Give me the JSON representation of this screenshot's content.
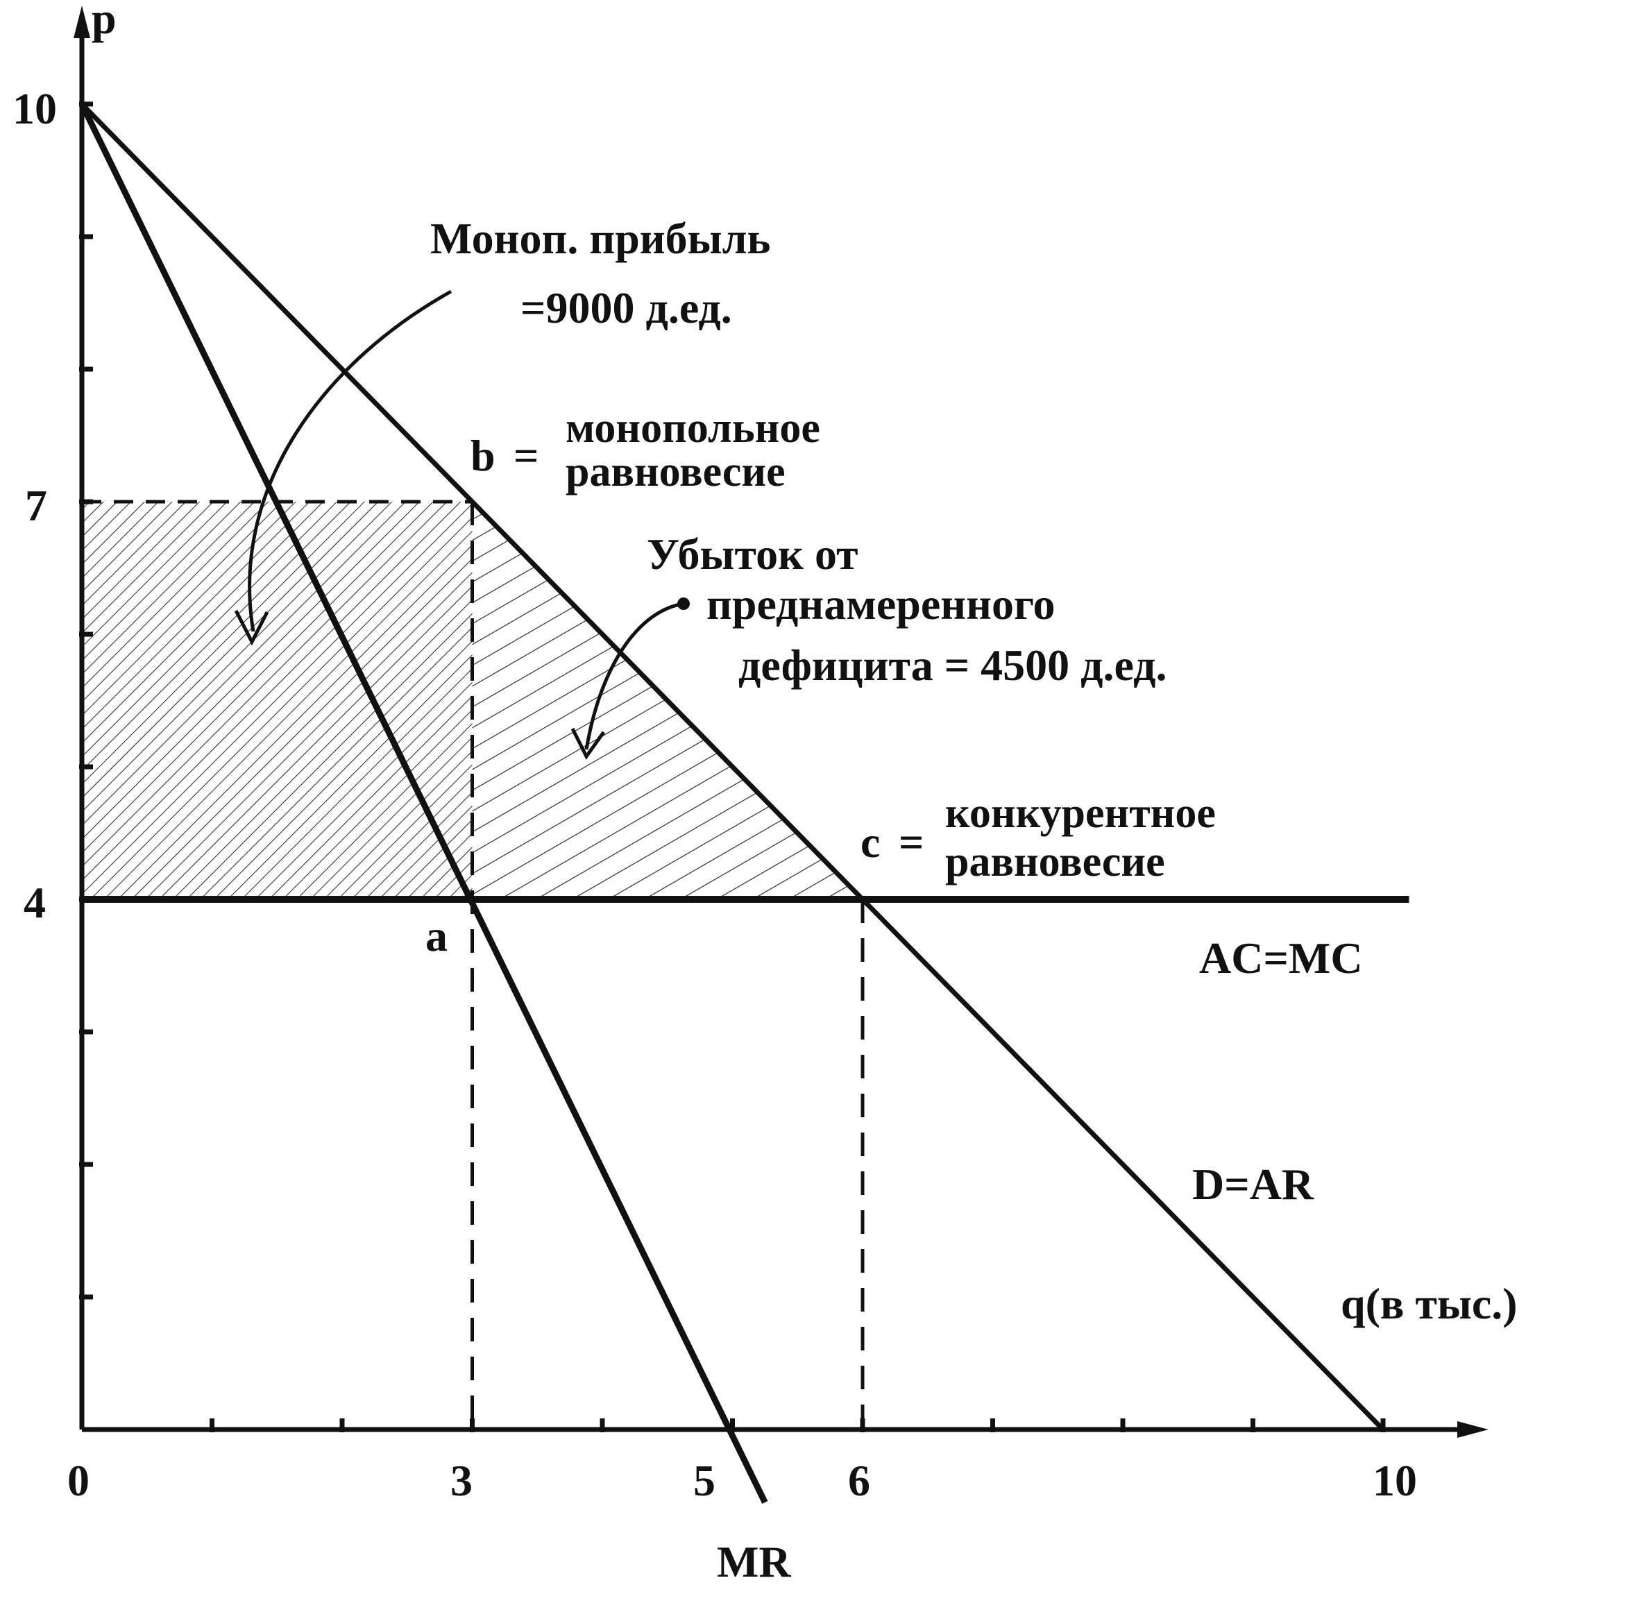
{
  "chart_data": {
    "type": "line",
    "title": "",
    "xlabel": "q(в тыс.)",
    "ylabel": "p",
    "xlim": [
      0,
      10
    ],
    "ylim": [
      0,
      10
    ],
    "x_tick_labels": [
      "0",
      "3",
      "5",
      "6",
      "10"
    ],
    "y_tick_labels": [
      "10",
      "7",
      "4"
    ],
    "series": [
      {
        "name": "D=AR",
        "x": [
          0,
          10
        ],
        "y": [
          10,
          0
        ]
      },
      {
        "name": "MR",
        "x": [
          0,
          5
        ],
        "y": [
          10,
          0
        ]
      },
      {
        "name": "AC=MC",
        "x": [
          0,
          10.2
        ],
        "y": [
          4,
          4
        ]
      }
    ],
    "points": [
      {
        "label": "a",
        "x": 3,
        "y": 4
      },
      {
        "label": "b",
        "x": 3,
        "y": 7
      },
      {
        "label": "c",
        "x": 6,
        "y": 4
      }
    ],
    "shaded_regions": [
      {
        "name": "monopoly_profit",
        "x_range": [
          0,
          3
        ],
        "y_range": [
          4,
          7
        ]
      },
      {
        "name": "deadweight_loss",
        "vertices": [
          [
            3,
            7
          ],
          [
            3,
            4
          ],
          [
            6,
            4
          ]
        ]
      }
    ],
    "annotations": {
      "profit_line1": "Моноп. прибыль",
      "profit_line2": "=9000 д.ед.",
      "b_prefix": "b",
      "b_eq": "=",
      "b_line1": "монопольное",
      "b_line2": "равновесие",
      "loss_line1": "Убыток от",
      "loss_line2": "преднамеренного",
      "loss_line3": "дефицита = 4500 д.ед.",
      "c_prefix": "c",
      "c_eq": "=",
      "c_line1": "конкурентное",
      "c_line2": "равновесие",
      "a_label": "a",
      "acmc_label": "AC=MC",
      "dar_label": "D=AR",
      "mr_label": "MR"
    }
  }
}
